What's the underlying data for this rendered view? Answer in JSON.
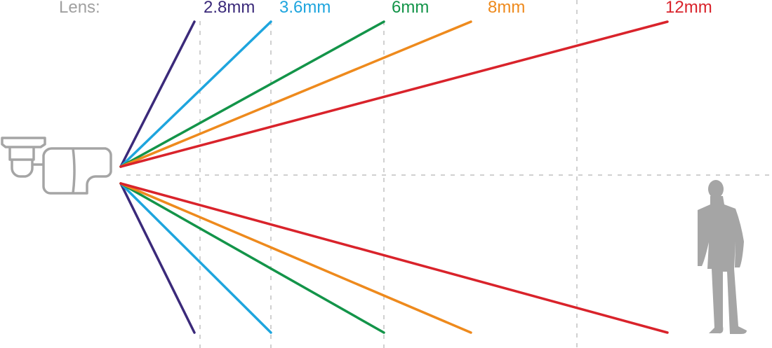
{
  "lens_label": "Lens:",
  "lenses": [
    {
      "label": "2.8mm",
      "color": "#3b2a7a"
    },
    {
      "label": "3.6mm",
      "color": "#1ea5de"
    },
    {
      "label": "6mm",
      "color": "#139449"
    },
    {
      "label": "8mm",
      "color": "#ee8a1d"
    },
    {
      "label": "12mm",
      "color": "#d9232b"
    }
  ],
  "icons": {
    "camera": "bullet-camera-icon",
    "person": "person-silhouette-icon"
  },
  "colors": {
    "text_gray": "#a0a0a0",
    "grid": "#d0d0d0",
    "icon_gray": "#a5a5a5"
  }
}
